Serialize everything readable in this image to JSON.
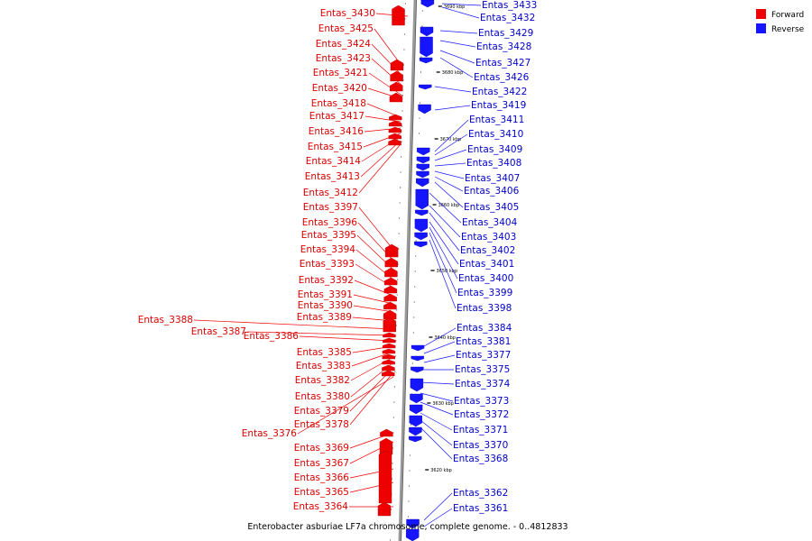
{
  "caption": "Enterobacter asburiae LF7a chromosome, complete genome. - 0..4812833",
  "legend": [
    {
      "label": "Forward",
      "color": "#ee0000"
    },
    {
      "label": "Reverse",
      "color": "#1515ff"
    }
  ],
  "ticks": [
    "3690 kbp",
    "3680 kbp",
    "3670 kbp",
    "3660 kbp",
    "3650 kbp",
    "3640 kbp",
    "3630 kbp",
    "3620 kbp"
  ],
  "forward_genes": [
    "Entas_3430",
    "Entas_3425",
    "Entas_3424",
    "Entas_3423",
    "Entas_3421",
    "Entas_3420",
    "Entas_3418",
    "Entas_3417",
    "Entas_3416",
    "Entas_3415",
    "Entas_3414",
    "Entas_3413",
    "Entas_3412",
    "Entas_3397",
    "Entas_3396",
    "Entas_3395",
    "Entas_3394",
    "Entas_3393",
    "Entas_3392",
    "Entas_3391",
    "Entas_3390",
    "Entas_3389",
    "Entas_3388",
    "Entas_3387",
    "Entas_3386",
    "Entas_3385",
    "Entas_3383",
    "Entas_3382",
    "Entas_3380",
    "Entas_3379",
    "Entas_3378",
    "Entas_3376",
    "Entas_3369",
    "Entas_3367",
    "Entas_3366",
    "Entas_3365",
    "Entas_3364"
  ],
  "reverse_genes": [
    "Entas_3433",
    "Entas_3432",
    "Entas_3429",
    "Entas_3428",
    "Entas_3427",
    "Entas_3426",
    "Entas_3422",
    "Entas_3419",
    "Entas_3411",
    "Entas_3410",
    "Entas_3409",
    "Entas_3408",
    "Entas_3407",
    "Entas_3406",
    "Entas_3405",
    "Entas_3404",
    "Entas_3403",
    "Entas_3402",
    "Entas_3401",
    "Entas_3400",
    "Entas_3399",
    "Entas_3398",
    "Entas_3384",
    "Entas_3381",
    "Entas_3377",
    "Entas_3375",
    "Entas_3374",
    "Entas_3373",
    "Entas_3372",
    "Entas_3371",
    "Entas_3370",
    "Entas_3368",
    "Entas_3362",
    "Entas_3361"
  ]
}
